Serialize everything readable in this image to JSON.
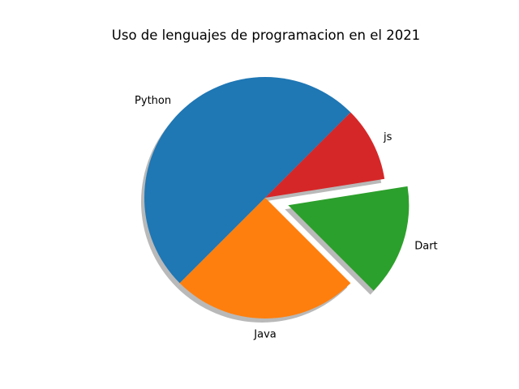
{
  "chart_data": {
    "type": "pie",
    "title": "Uso de lenguajes de programacion en el 2021",
    "slices": [
      {
        "label": "Python",
        "value": 50,
        "color": "#1f77b4",
        "explode": 0
      },
      {
        "label": "Java",
        "value": 25,
        "color": "#ff7f0e",
        "explode": 0
      },
      {
        "label": "Dart",
        "value": 15,
        "color": "#2ca02c",
        "explode": 0.2
      },
      {
        "label": "js",
        "value": 10,
        "color": "#d62728",
        "explode": 0
      }
    ],
    "start_angle_deg": 45,
    "shadow": true,
    "shadow_color": "#808080"
  }
}
